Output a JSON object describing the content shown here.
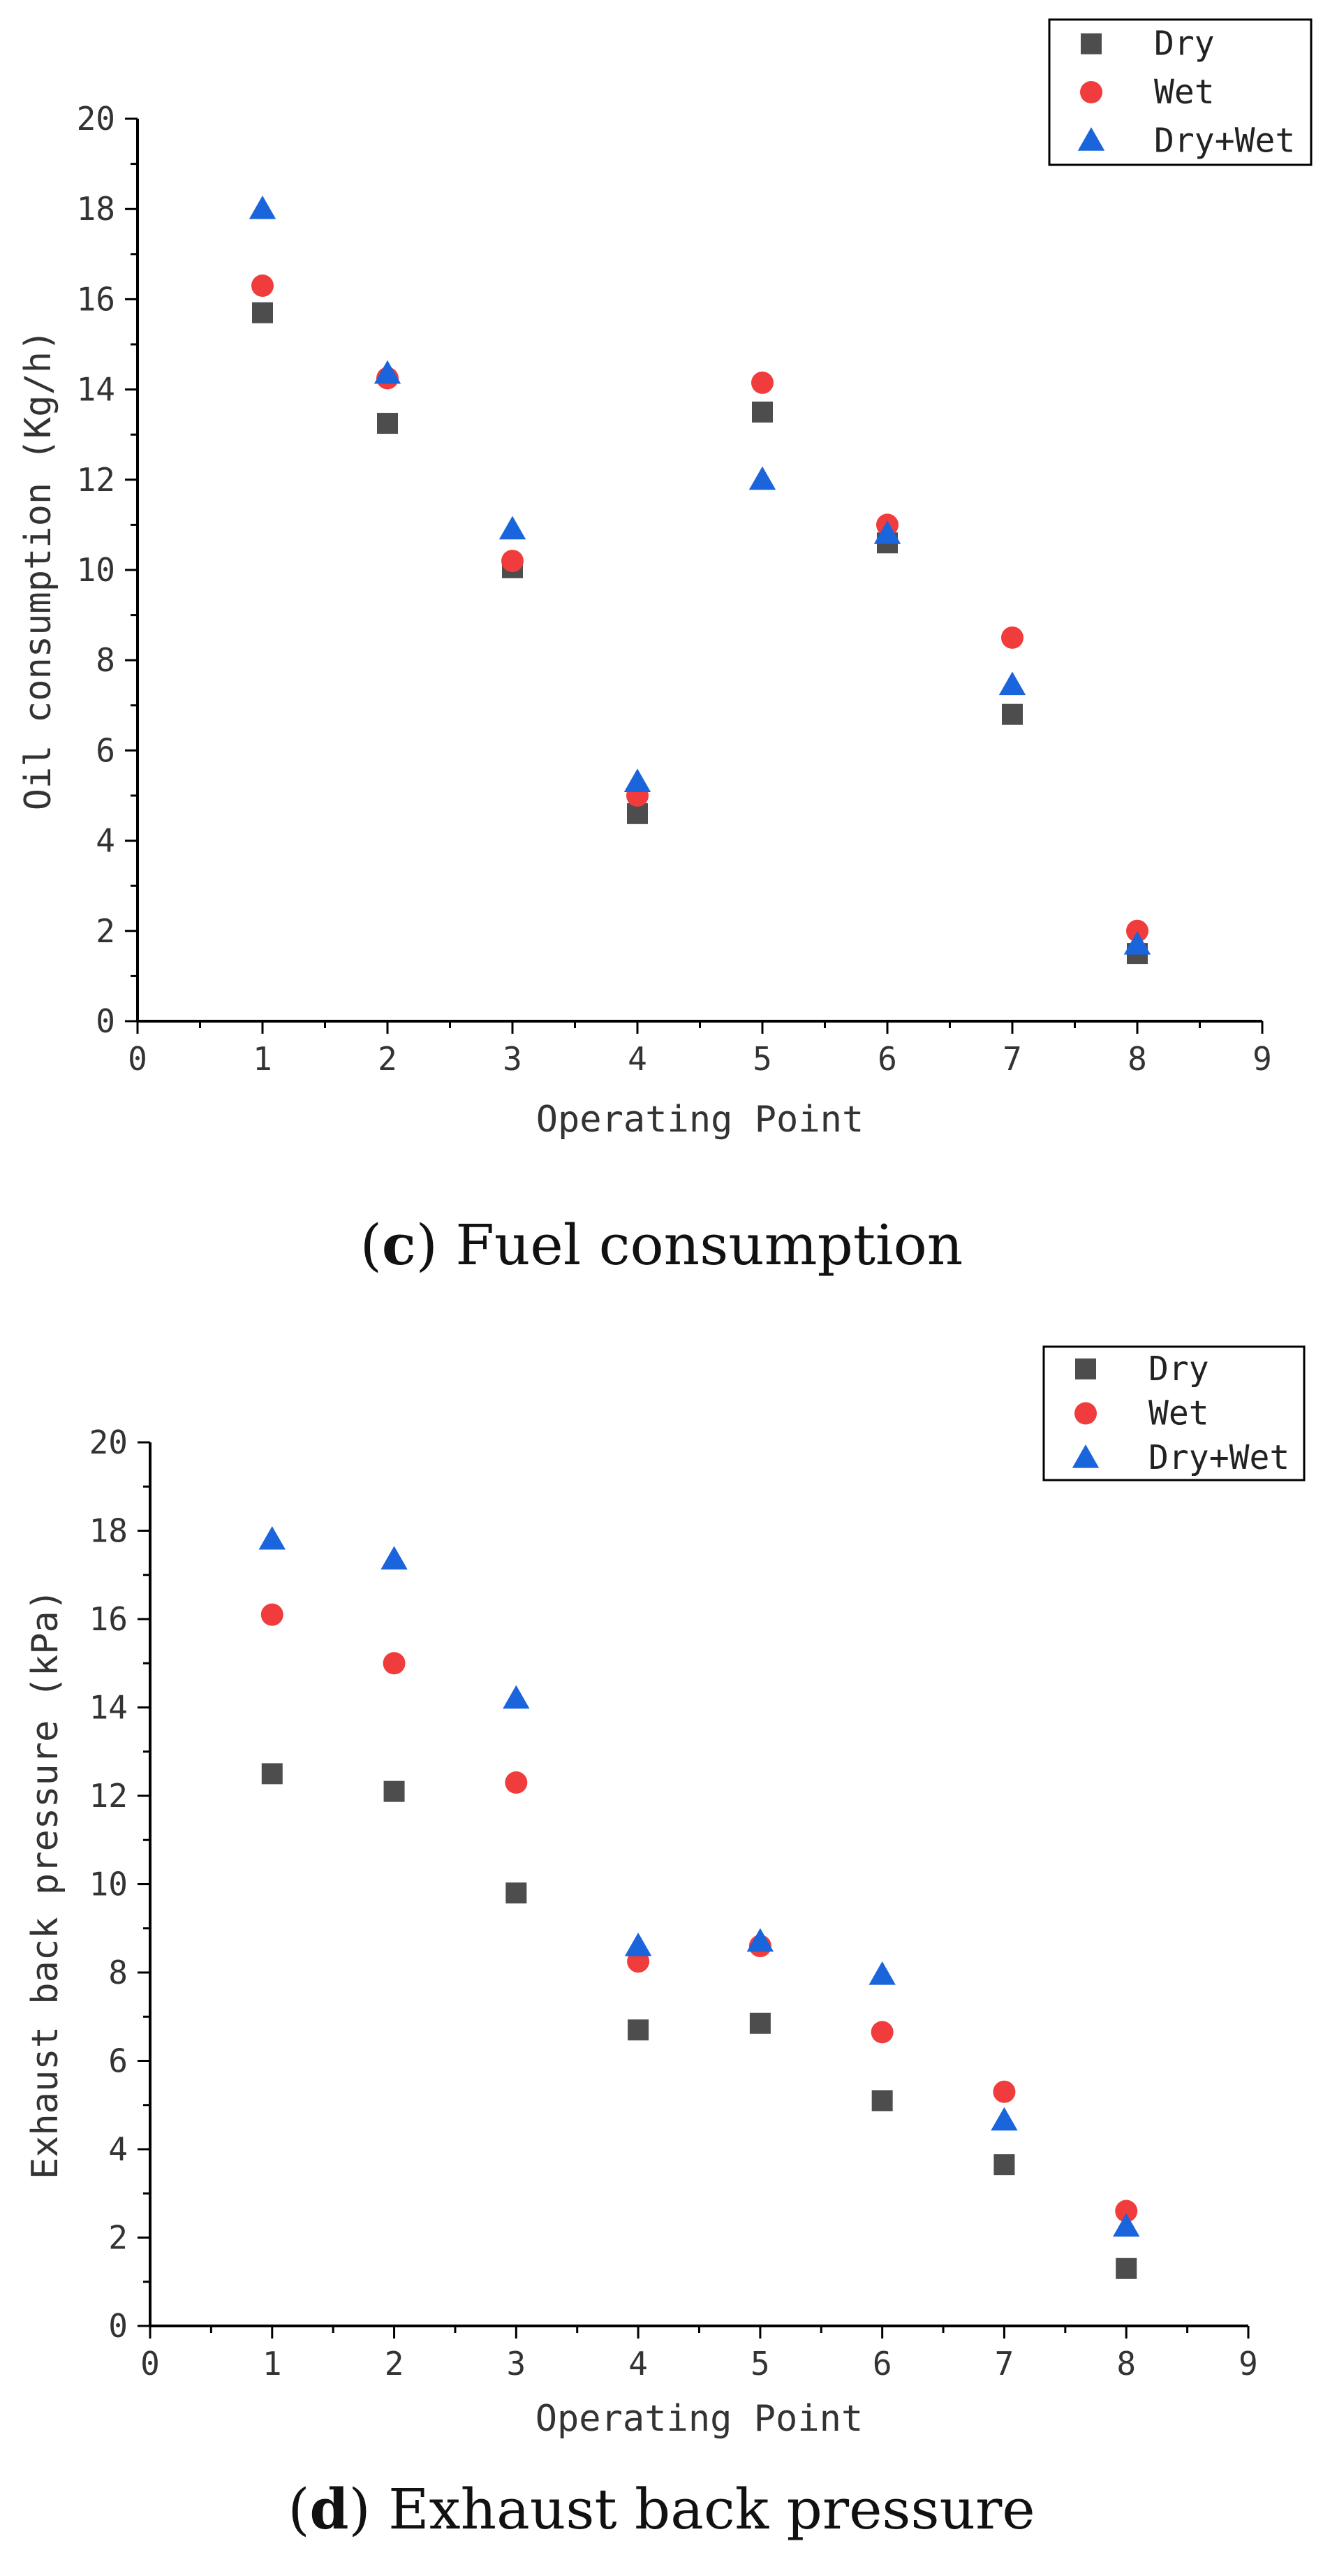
{
  "chart_data": [
    {
      "type": "scatter",
      "id": "c",
      "caption_letter": "c",
      "caption_text": "Fuel consumption",
      "xlabel": "Operating Point",
      "ylabel": "Oil consumption (Kg/h)",
      "xlim": [
        0,
        9
      ],
      "ylim": [
        0,
        20
      ],
      "xticks": [
        "0",
        "1",
        "2",
        "3",
        "4",
        "5",
        "6",
        "7",
        "8",
        "9"
      ],
      "yticks": [
        "0",
        "2",
        "4",
        "6",
        "8",
        "10",
        "12",
        "14",
        "16",
        "18",
        "20"
      ],
      "legend_position": "top-right",
      "x": [
        1,
        2,
        3,
        4,
        5,
        6,
        7,
        8
      ],
      "series": [
        {
          "name": "Dry",
          "marker": "square",
          "color": "#4d4d4d",
          "values": [
            15.7,
            13.25,
            10.05,
            4.6,
            13.5,
            10.6,
            6.8,
            1.5
          ]
        },
        {
          "name": "Wet",
          "marker": "circle",
          "color": "#f03c3c",
          "values": [
            16.3,
            14.25,
            10.2,
            5.0,
            14.15,
            11.0,
            8.5,
            2.0
          ]
        },
        {
          "name": "Dry+Wet",
          "marker": "triangle",
          "color": "#1a64dc",
          "values": [
            18.0,
            14.35,
            10.9,
            5.3,
            12.0,
            10.8,
            7.45,
            1.7
          ]
        }
      ]
    },
    {
      "type": "scatter",
      "id": "d",
      "caption_letter": "d",
      "caption_text": "Exhaust back pressure",
      "xlabel": "Operating Point",
      "ylabel": "Exhaust back pressure (kPa)",
      "xlim": [
        0,
        9
      ],
      "ylim": [
        0,
        20
      ],
      "xticks": [
        "0",
        "1",
        "2",
        "3",
        "4",
        "5",
        "6",
        "7",
        "8",
        "9"
      ],
      "yticks": [
        "0",
        "2",
        "4",
        "6",
        "8",
        "10",
        "12",
        "14",
        "16",
        "18",
        "20"
      ],
      "legend_position": "top-right",
      "x": [
        1,
        2,
        3,
        4,
        5,
        6,
        7,
        8
      ],
      "series": [
        {
          "name": "Dry",
          "marker": "square",
          "color": "#4d4d4d",
          "values": [
            12.5,
            12.1,
            9.8,
            6.7,
            6.85,
            5.1,
            3.65,
            1.3
          ]
        },
        {
          "name": "Wet",
          "marker": "circle",
          "color": "#f03c3c",
          "values": [
            16.1,
            15.0,
            12.3,
            8.25,
            8.6,
            6.65,
            5.3,
            2.6
          ]
        },
        {
          "name": "Dry+Wet",
          "marker": "triangle",
          "color": "#1a64dc",
          "values": [
            17.8,
            17.35,
            14.2,
            8.6,
            8.7,
            7.95,
            4.65,
            2.25
          ]
        }
      ]
    }
  ]
}
